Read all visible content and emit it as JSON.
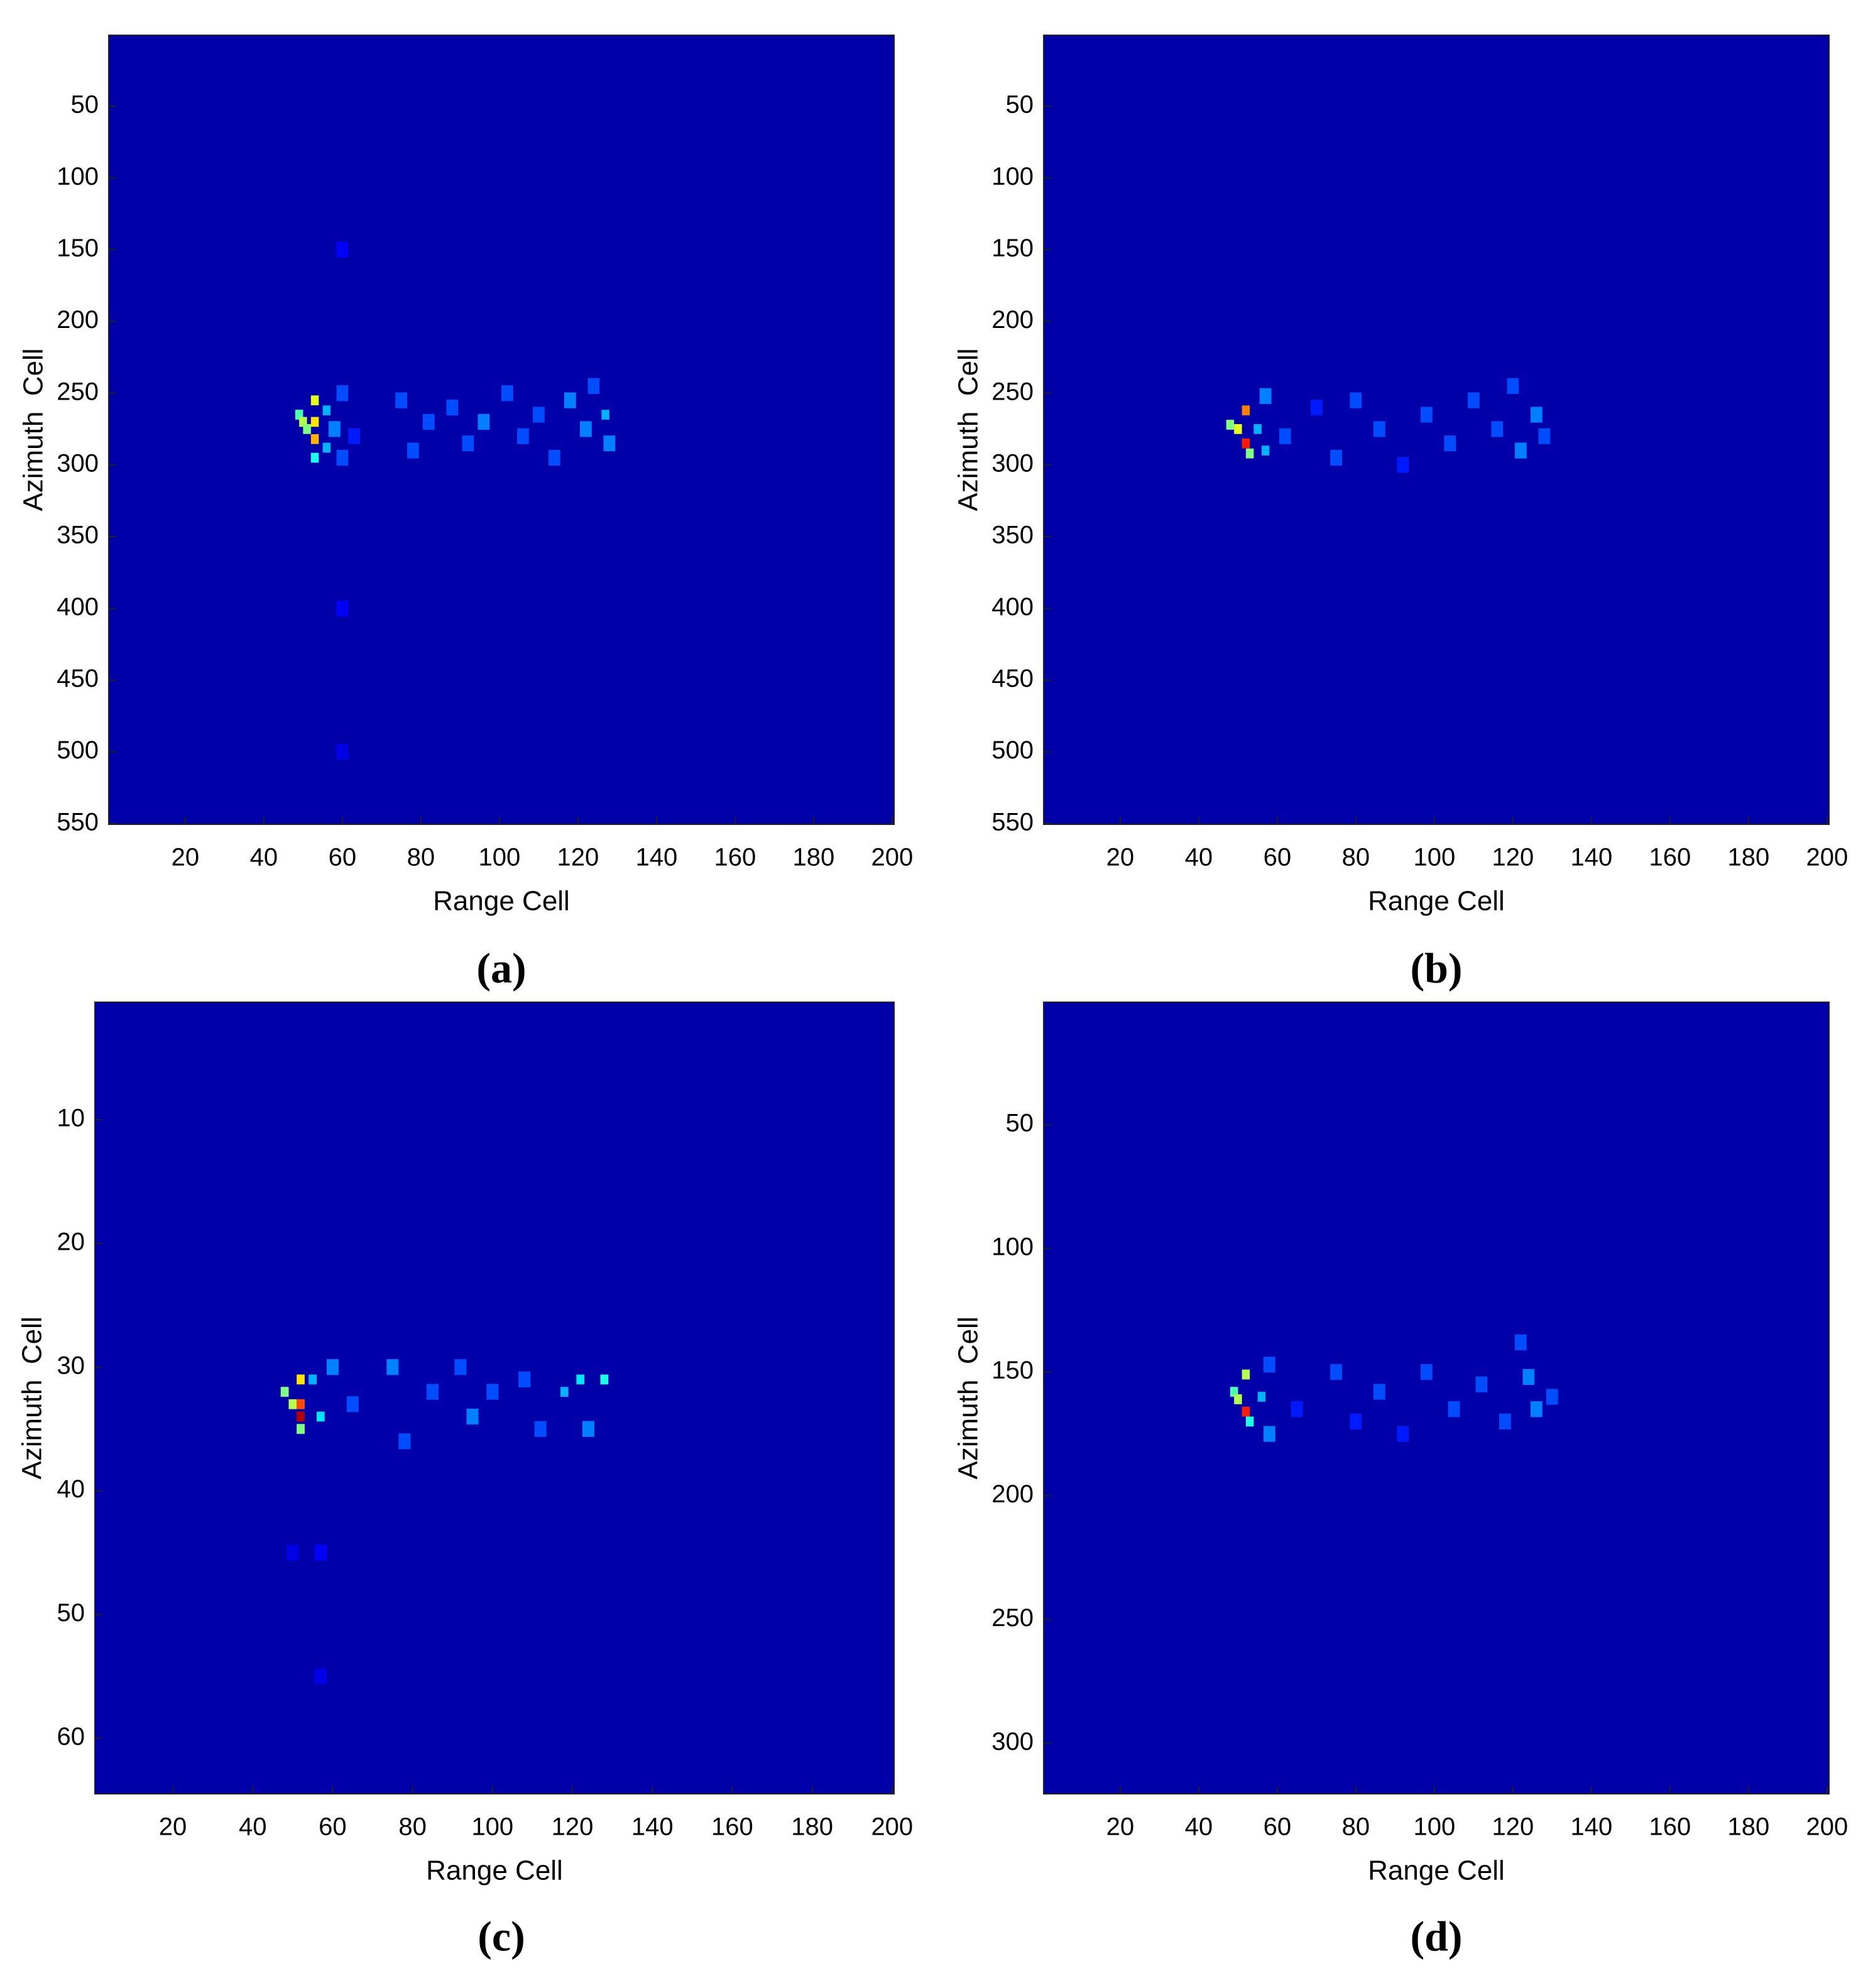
{
  "chart_data": [
    {
      "type": "heatmap",
      "caption": "(a)",
      "x_label": "Range Cell",
      "y_label": "Azimuth  Cell",
      "xlim": [
        0.5,
        200.5
      ],
      "ylim": [
        0.5,
        550.5
      ],
      "y_reversed": true,
      "colormap": "jet",
      "clim": [
        0,
        1
      ],
      "xticks": [
        20,
        40,
        60,
        80,
        100,
        120,
        140,
        160,
        180,
        200
      ],
      "yticks": [
        50,
        100,
        150,
        200,
        250,
        300,
        350,
        400,
        450,
        500,
        550
      ],
      "x": [
        49,
        50,
        51,
        53,
        53,
        53,
        53,
        56,
        56,
        58,
        60,
        60,
        63,
        75,
        78,
        82,
        88,
        92,
        96,
        102,
        106,
        110,
        114,
        118,
        122,
        124,
        127,
        128,
        60,
        60,
        60
      ],
      "y": [
        265,
        270,
        275,
        255,
        270,
        282,
        295,
        262,
        288,
        275,
        250,
        295,
        280,
        255,
        290,
        270,
        260,
        285,
        270,
        250,
        280,
        265,
        295,
        255,
        275,
        245,
        265,
        285,
        150,
        400,
        500
      ],
      "values": [
        0.45,
        0.55,
        0.5,
        0.6,
        0.65,
        0.7,
        0.4,
        0.3,
        0.3,
        0.25,
        0.2,
        0.2,
        0.15,
        0.2,
        0.2,
        0.2,
        0.2,
        0.2,
        0.25,
        0.2,
        0.2,
        0.2,
        0.2,
        0.25,
        0.25,
        0.2,
        0.3,
        0.25,
        0.12,
        0.12,
        0.1
      ]
    },
    {
      "type": "heatmap",
      "caption": "(b)",
      "x_label": "Range Cell",
      "y_label": "Azimuth  Cell",
      "xlim": [
        0.5,
        200.5
      ],
      "ylim": [
        0.5,
        550.5
      ],
      "y_reversed": true,
      "colormap": "jet",
      "clim": [
        0,
        1
      ],
      "xticks": [
        20,
        40,
        60,
        80,
        100,
        120,
        140,
        160,
        180,
        200
      ],
      "yticks": [
        50,
        100,
        150,
        200,
        250,
        300,
        350,
        400,
        450,
        500,
        550
      ],
      "x": [
        48,
        50,
        52,
        52,
        53,
        55,
        57,
        57,
        62,
        70,
        75,
        80,
        86,
        92,
        98,
        104,
        110,
        116,
        120,
        122,
        126,
        128
      ],
      "y": [
        272,
        275,
        262,
        285,
        292,
        275,
        252,
        290,
        280,
        260,
        295,
        255,
        275,
        300,
        265,
        285,
        255,
        275,
        245,
        290,
        265,
        280
      ],
      "values": [
        0.5,
        0.6,
        0.75,
        0.85,
        0.5,
        0.3,
        0.25,
        0.3,
        0.2,
        0.15,
        0.2,
        0.2,
        0.2,
        0.15,
        0.2,
        0.2,
        0.2,
        0.2,
        0.2,
        0.25,
        0.25,
        0.2
      ]
    },
    {
      "type": "heatmap",
      "caption": "(c)",
      "x_label": "Range Cell",
      "y_label": "Azimuth  Cell",
      "xlim": [
        0.5,
        200.5
      ],
      "ylim": [
        0.5,
        64.5
      ],
      "y_reversed": true,
      "colormap": "jet",
      "clim": [
        0,
        1
      ],
      "xticks": [
        20,
        40,
        60,
        80,
        100,
        120,
        140,
        160,
        180,
        200
      ],
      "yticks": [
        10,
        20,
        30,
        40,
        50,
        60
      ],
      "x": [
        48,
        50,
        52,
        52,
        52,
        52,
        55,
        57,
        60,
        65,
        75,
        78,
        85,
        92,
        95,
        100,
        108,
        112,
        118,
        122,
        124,
        128,
        57,
        57,
        50
      ],
      "y": [
        32,
        33,
        31,
        33,
        34,
        35,
        31,
        34,
        30,
        33,
        30,
        36,
        32,
        30,
        34,
        32,
        31,
        35,
        32,
        31,
        35,
        31,
        45,
        55,
        45
      ],
      "values": [
        0.5,
        0.55,
        0.65,
        0.8,
        0.95,
        0.5,
        0.3,
        0.35,
        0.25,
        0.2,
        0.25,
        0.2,
        0.2,
        0.2,
        0.25,
        0.2,
        0.2,
        0.2,
        0.3,
        0.35,
        0.25,
        0.4,
        0.12,
        0.1,
        0.1
      ]
    },
    {
      "type": "heatmap",
      "caption": "(d)",
      "x_label": "Range Cell",
      "y_label": "Azimuth  Cell",
      "xlim": [
        0.5,
        200.5
      ],
      "ylim": [
        0.5,
        320.5
      ],
      "y_reversed": true,
      "colormap": "jet",
      "clim": [
        0,
        1
      ],
      "xticks": [
        20,
        40,
        60,
        80,
        100,
        120,
        140,
        160,
        180,
        200
      ],
      "yticks": [
        50,
        100,
        150,
        200,
        250,
        300
      ],
      "x": [
        49,
        50,
        52,
        52,
        53,
        56,
        58,
        58,
        65,
        75,
        80,
        86,
        92,
        98,
        105,
        112,
        118,
        122,
        124,
        126,
        130
      ],
      "y": [
        158,
        161,
        151,
        166,
        170,
        160,
        147,
        175,
        165,
        150,
        170,
        158,
        175,
        150,
        165,
        155,
        170,
        138,
        152,
        165,
        160
      ],
      "values": [
        0.45,
        0.55,
        0.55,
        0.85,
        0.4,
        0.3,
        0.2,
        0.25,
        0.15,
        0.2,
        0.15,
        0.2,
        0.15,
        0.2,
        0.2,
        0.2,
        0.2,
        0.2,
        0.25,
        0.25,
        0.2
      ]
    }
  ]
}
